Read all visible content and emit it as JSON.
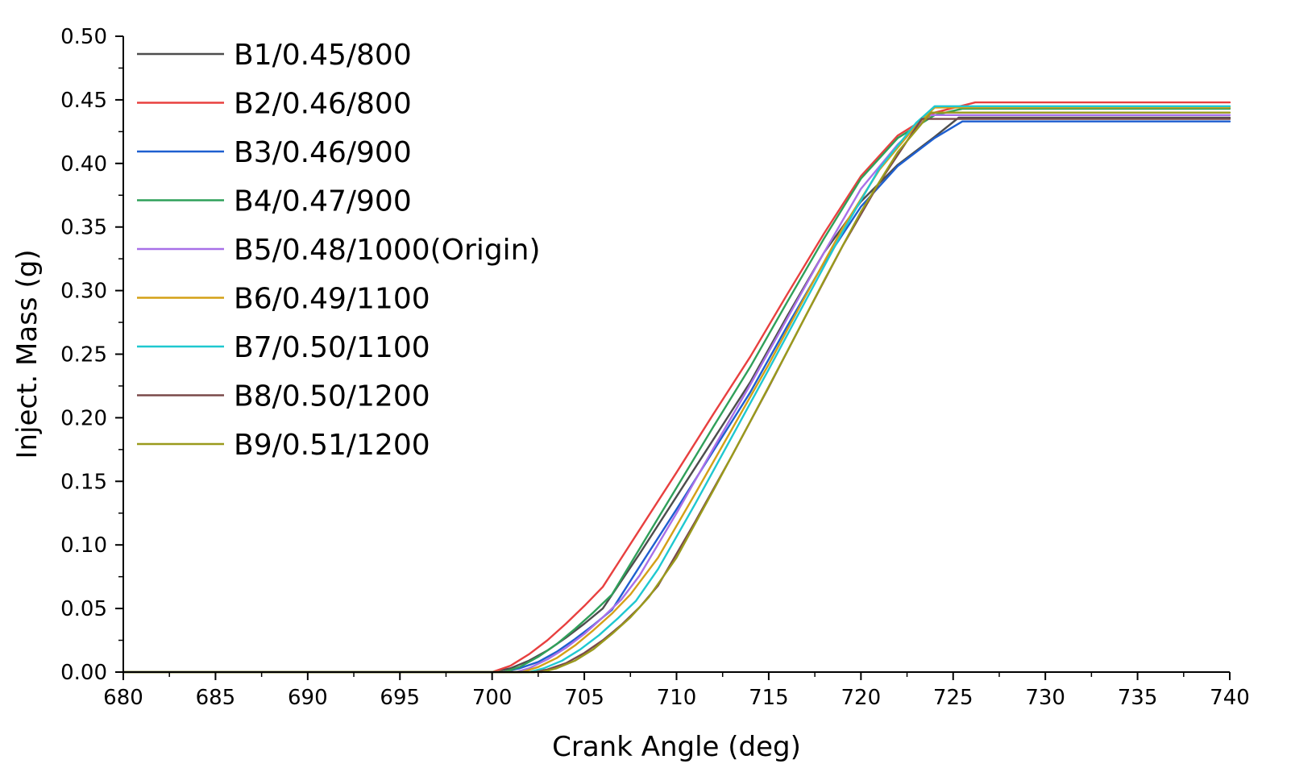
{
  "chart_data": {
    "type": "line",
    "title": "",
    "xlabel": "Crank Angle (deg)",
    "ylabel": "Inject. Mass (g)",
    "xlim": [
      680,
      740
    ],
    "ylim": [
      0.0,
      0.5
    ],
    "xticks": [
      680,
      685,
      690,
      695,
      700,
      705,
      710,
      715,
      720,
      725,
      730,
      735,
      740
    ],
    "xtick_labels": [
      "680",
      "685",
      "690",
      "695",
      "700",
      "705",
      "710",
      "715",
      "720",
      "725",
      "730",
      "735",
      "740"
    ],
    "yticks": [
      0.0,
      0.05,
      0.1,
      0.15,
      0.2,
      0.25,
      0.3,
      0.35,
      0.4,
      0.45,
      0.5
    ],
    "ytick_labels": [
      "0.00",
      "0.05",
      "0.10",
      "0.15",
      "0.20",
      "0.25",
      "0.30",
      "0.35",
      "0.40",
      "0.45",
      "0.50"
    ],
    "grid": false,
    "legend_position": "top-left",
    "series": [
      {
        "name": "B1/0.45/800",
        "color": "#4d4d4d",
        "x": [
          680,
          700.0,
          701,
          702,
          703,
          704,
          705,
          706,
          708,
          710,
          712,
          714,
          716,
          718,
          720,
          722,
          724,
          725.3,
          740
        ],
        "y": [
          0,
          0,
          0.003,
          0.009,
          0.017,
          0.027,
          0.038,
          0.05,
          0.093,
          0.138,
          0.183,
          0.228,
          0.28,
          0.33,
          0.37,
          0.399,
          0.421,
          0.436,
          0.436
        ]
      },
      {
        "name": "B2/0.46/800",
        "color": "#e8403f",
        "x": [
          680,
          700.0,
          701,
          702,
          703,
          704,
          705,
          706,
          708,
          710,
          712,
          714,
          716,
          718,
          720,
          722,
          724,
          726.2,
          740
        ],
        "y": [
          0,
          0,
          0.005,
          0.014,
          0.025,
          0.038,
          0.052,
          0.067,
          0.112,
          0.157,
          0.203,
          0.248,
          0.297,
          0.345,
          0.39,
          0.422,
          0.44,
          0.448,
          0.448
        ]
      },
      {
        "name": "B3/0.46/900",
        "color": "#1e5fd0",
        "x": [
          680,
          700.5,
          701.5,
          702.5,
          703.5,
          704.5,
          705.5,
          706.5,
          708,
          710,
          712,
          714,
          716,
          718,
          720,
          722,
          724,
          725.5,
          740
        ],
        "y": [
          0,
          0,
          0.003,
          0.008,
          0.016,
          0.026,
          0.037,
          0.049,
          0.083,
          0.128,
          0.174,
          0.22,
          0.272,
          0.322,
          0.366,
          0.398,
          0.42,
          0.433,
          0.433
        ]
      },
      {
        "name": "B4/0.47/900",
        "color": "#2fa05a",
        "x": [
          680,
          700.6,
          701.5,
          702.5,
          703.5,
          704.5,
          705.5,
          706.5,
          708,
          710,
          712,
          714,
          716,
          718,
          720,
          722,
          724,
          725.5,
          740
        ],
        "y": [
          0,
          0,
          0.004,
          0.012,
          0.022,
          0.034,
          0.047,
          0.061,
          0.097,
          0.145,
          0.193,
          0.24,
          0.291,
          0.341,
          0.388,
          0.42,
          0.438,
          0.443,
          0.443
        ]
      },
      {
        "name": "B5/0.48/1000(Origin)",
        "color": "#a870e8",
        "x": [
          680,
          701.3,
          702,
          703,
          704,
          705,
          706,
          707,
          708,
          710,
          712,
          714,
          716,
          718,
          720,
          722,
          723.7,
          740
        ],
        "y": [
          0,
          0,
          0.003,
          0.01,
          0.019,
          0.03,
          0.043,
          0.057,
          0.076,
          0.125,
          0.176,
          0.226,
          0.278,
          0.33,
          0.38,
          0.415,
          0.438,
          0.438
        ]
      },
      {
        "name": "B6/0.49/1100",
        "color": "#d4a017",
        "x": [
          680,
          701.6,
          702.5,
          703.5,
          704.5,
          705.5,
          706.5,
          707.5,
          709,
          711,
          713,
          715,
          717,
          719,
          721,
          723,
          724.0,
          740
        ],
        "y": [
          0,
          0,
          0.004,
          0.011,
          0.021,
          0.033,
          0.046,
          0.061,
          0.09,
          0.14,
          0.191,
          0.242,
          0.296,
          0.349,
          0.395,
          0.43,
          0.444,
          0.444
        ]
      },
      {
        "name": "B7/0.50/1100",
        "color": "#1fc8d0",
        "x": [
          680,
          702.0,
          702.8,
          703.8,
          704.8,
          705.8,
          706.8,
          707.8,
          709,
          711,
          713,
          715,
          717,
          719,
          721,
          723,
          724.0,
          740
        ],
        "y": [
          0,
          0,
          0.003,
          0.009,
          0.018,
          0.029,
          0.042,
          0.056,
          0.081,
          0.132,
          0.185,
          0.238,
          0.292,
          0.346,
          0.396,
          0.432,
          0.445,
          0.445
        ]
      },
      {
        "name": "B8/0.50/1200",
        "color": "#7a4a4a",
        "x": [
          680,
          702.3,
          703,
          704,
          705,
          706,
          707,
          708,
          709,
          711,
          713,
          715,
          717,
          719,
          721,
          723.3,
          740
        ],
        "y": [
          0,
          0,
          0.002,
          0.007,
          0.015,
          0.025,
          0.037,
          0.051,
          0.068,
          0.118,
          0.17,
          0.224,
          0.28,
          0.335,
          0.385,
          0.435,
          0.435
        ]
      },
      {
        "name": "B9/0.51/1200",
        "color": "#9a9a1c",
        "x": [
          680,
          702.7,
          703.5,
          704.5,
          705.5,
          706.5,
          707.5,
          708.5,
          710,
          712,
          714,
          716,
          718,
          720,
          722,
          723.8,
          740
        ],
        "y": [
          0,
          0,
          0.003,
          0.009,
          0.018,
          0.03,
          0.043,
          0.059,
          0.09,
          0.143,
          0.197,
          0.252,
          0.308,
          0.362,
          0.409,
          0.44,
          0.44
        ]
      }
    ]
  }
}
